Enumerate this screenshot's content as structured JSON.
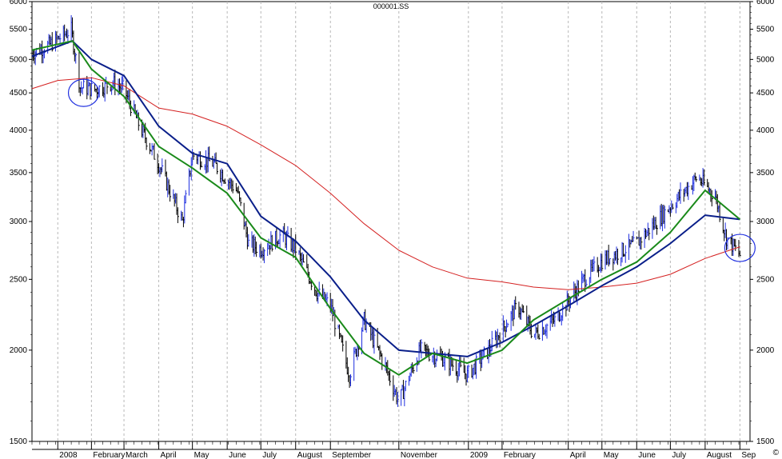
{
  "chart_data": {
    "type": "line",
    "title": "000001.SS",
    "scale": "log",
    "ylim": [
      1500,
      6000
    ],
    "y_ticks": [
      1500,
      2000,
      2500,
      3000,
      3500,
      4000,
      4500,
      5000,
      5500,
      6000
    ],
    "x_tick_labels": [
      "2008",
      "February",
      "March",
      "April",
      "May",
      "June",
      "July",
      "August",
      "September",
      "November",
      "2009",
      "February",
      "April",
      "May",
      "June",
      "July",
      "August",
      "Sep"
    ],
    "grid": "vertical dashed",
    "price_colors": {
      "up": "#1f2fe0",
      "down": "#000000"
    },
    "series": [
      {
        "color": "#d42020",
        "values": [
          [
            "2007-12-10",
            4560
          ],
          [
            "2008-01-02",
            4680
          ],
          [
            "2008-02-01",
            4720
          ],
          [
            "2008-03-01",
            4600
          ],
          [
            "2008-04-01",
            4290
          ],
          [
            "2008-05-01",
            4210
          ],
          [
            "2008-06-01",
            4050
          ],
          [
            "2008-07-01",
            3820
          ],
          [
            "2008-08-01",
            3580
          ],
          [
            "2008-09-01",
            3280
          ],
          [
            "2008-10-01",
            2980
          ],
          [
            "2008-11-01",
            2740
          ],
          [
            "2008-12-01",
            2600
          ],
          [
            "2009-01-01",
            2510
          ],
          [
            "2009-02-01",
            2480
          ],
          [
            "2009-03-01",
            2440
          ],
          [
            "2009-04-01",
            2420
          ],
          [
            "2009-05-01",
            2440
          ],
          [
            "2009-06-01",
            2470
          ],
          [
            "2009-07-01",
            2540
          ],
          [
            "2009-08-01",
            2670
          ],
          [
            "2009-09-01",
            2770
          ]
        ]
      },
      {
        "color": "#0a1f8a",
        "values": [
          [
            "2007-12-10",
            5050
          ],
          [
            "2008-01-15",
            5300
          ],
          [
            "2008-02-01",
            5000
          ],
          [
            "2008-03-01",
            4750
          ],
          [
            "2008-04-01",
            4050
          ],
          [
            "2008-05-01",
            3720
          ],
          [
            "2008-06-01",
            3600
          ],
          [
            "2008-07-01",
            3050
          ],
          [
            "2008-08-01",
            2820
          ],
          [
            "2008-09-01",
            2520
          ],
          [
            "2008-10-01",
            2200
          ],
          [
            "2008-11-01",
            2000
          ],
          [
            "2008-12-01",
            1980
          ],
          [
            "2009-01-01",
            1960
          ],
          [
            "2009-02-01",
            2050
          ],
          [
            "2009-03-01",
            2160
          ],
          [
            "2009-04-01",
            2300
          ],
          [
            "2009-05-01",
            2450
          ],
          [
            "2009-06-01",
            2600
          ],
          [
            "2009-07-01",
            2800
          ],
          [
            "2009-08-01",
            3060
          ],
          [
            "2009-09-01",
            3020
          ]
        ]
      },
      {
        "color": "#1a8a1a",
        "values": [
          [
            "2007-12-10",
            5150
          ],
          [
            "2008-01-15",
            5300
          ],
          [
            "2008-02-01",
            4850
          ],
          [
            "2008-03-01",
            4450
          ],
          [
            "2008-04-01",
            3800
          ],
          [
            "2008-05-01",
            3550
          ],
          [
            "2008-06-01",
            3280
          ],
          [
            "2008-07-01",
            2850
          ],
          [
            "2008-08-01",
            2680
          ],
          [
            "2008-09-01",
            2280
          ],
          [
            "2008-10-01",
            1980
          ],
          [
            "2008-11-01",
            1850
          ],
          [
            "2008-12-01",
            1980
          ],
          [
            "2009-01-01",
            1920
          ],
          [
            "2009-02-01",
            2000
          ],
          [
            "2009-03-01",
            2200
          ],
          [
            "2009-04-01",
            2350
          ],
          [
            "2009-05-01",
            2500
          ],
          [
            "2009-06-01",
            2640
          ],
          [
            "2009-07-01",
            2900
          ],
          [
            "2009-08-01",
            3310
          ],
          [
            "2009-09-01",
            3020
          ]
        ]
      },
      {
        "values": [
          [
            "2007-12-10",
            5100
          ],
          [
            "2007-12-25",
            5230
          ],
          [
            "2008-01-14",
            5490
          ],
          [
            "2008-01-22",
            4580
          ],
          [
            "2008-02-05",
            4550
          ],
          [
            "2008-02-20",
            4650
          ],
          [
            "2008-03-01",
            4550
          ],
          [
            "2008-03-15",
            4050
          ],
          [
            "2008-04-01",
            3600
          ],
          [
            "2008-04-22",
            3000
          ],
          [
            "2008-05-01",
            3700
          ],
          [
            "2008-05-20",
            3600
          ],
          [
            "2008-06-10",
            3300
          ],
          [
            "2008-06-20",
            2800
          ],
          [
            "2008-07-01",
            2750
          ],
          [
            "2008-07-20",
            2880
          ],
          [
            "2008-08-01",
            2750
          ],
          [
            "2008-08-20",
            2400
          ],
          [
            "2008-09-01",
            2300
          ],
          [
            "2008-09-18",
            1850
          ],
          [
            "2008-10-01",
            2200
          ],
          [
            "2008-10-20",
            1900
          ],
          [
            "2008-11-01",
            1700
          ],
          [
            "2008-11-20",
            2000
          ],
          [
            "2008-12-10",
            1950
          ],
          [
            "2009-01-01",
            1850
          ],
          [
            "2009-01-20",
            2000
          ],
          [
            "2009-02-15",
            2300
          ],
          [
            "2009-03-01",
            2100
          ],
          [
            "2009-03-20",
            2200
          ],
          [
            "2009-04-15",
            2500
          ],
          [
            "2009-05-01",
            2650
          ],
          [
            "2009-06-01",
            2800
          ],
          [
            "2009-07-01",
            3150
          ],
          [
            "2009-07-25",
            3450
          ],
          [
            "2009-08-10",
            3250
          ],
          [
            "2009-08-20",
            2850
          ],
          [
            "2009-09-01",
            2700
          ]
        ]
      }
    ],
    "annotations": [
      {
        "shape": "circle",
        "color": "#1f2fe0",
        "x": "2008-01-25",
        "y": 4500
      },
      {
        "shape": "circle",
        "color": "#1f2fe0",
        "x": "2009-09-01",
        "y": 2760
      }
    ]
  },
  "footer": {
    "copyright_symbol": "©"
  }
}
